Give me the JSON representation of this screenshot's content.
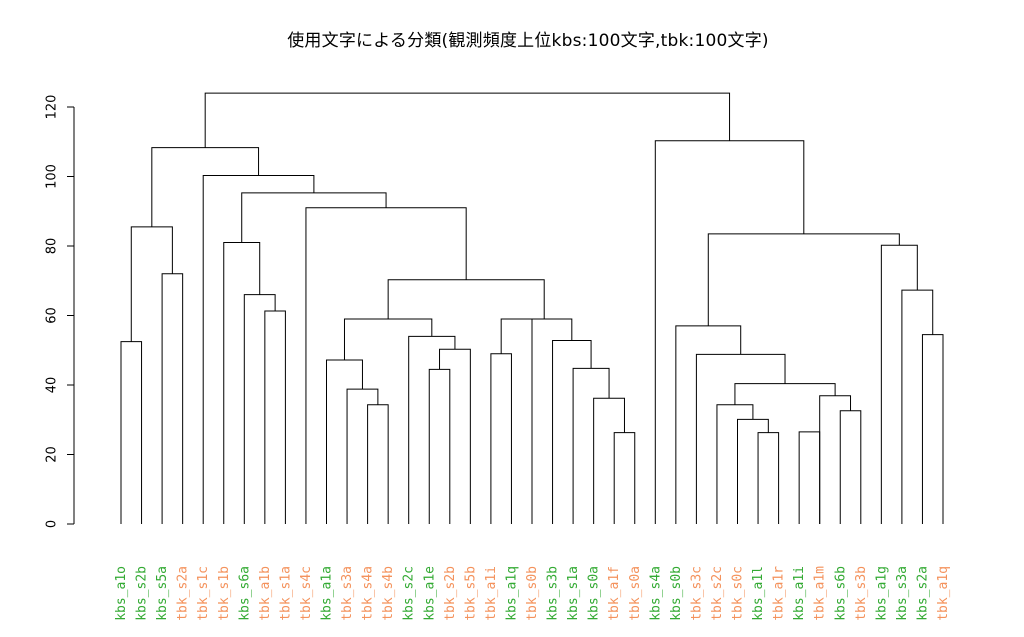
{
  "chart_data": {
    "type": "dendrogram",
    "title": "使用文字による分類(観測頻度上位kbs:100文字,tbk:100文字)",
    "xlabel": "",
    "ylabel": "",
    "ylim": [
      0,
      125
    ],
    "y_ticks": [
      0,
      20,
      40,
      60,
      80,
      100,
      120
    ],
    "y_tick_labels": [
      "0",
      "20",
      "40",
      "60",
      "80",
      "100",
      "120"
    ],
    "colors": {
      "kbs": "#33aa33",
      "tbk": "#f4925c",
      "lines": "#000000"
    },
    "leaves": [
      "kbs_a1o",
      "kbs_s2b",
      "kbs_s5a",
      "tbk_s2a",
      "tbk_s1c",
      "tbk_s1b",
      "kbs_s6a",
      "tbk_a1b",
      "tbk_s1a",
      "tbk_s4c",
      "kbs_a1a",
      "tbk_s3a",
      "tbk_s4a",
      "tbk_s4b",
      "kbs_s2c",
      "kbs_a1e",
      "tbk_s2b",
      "tbk_s5b",
      "tbk_a1i",
      "kbs_a1q",
      "tbk_s0b",
      "kbs_s3b",
      "kbs_s1a",
      "kbs_s0a",
      "tbk_a1f",
      "tbk_s0a",
      "kbs_s4a",
      "kbs_s0b",
      "tbk_s3c",
      "tbk_s2c",
      "tbk_s0c",
      "kbs_a1l",
      "tbk_a1r",
      "kbs_a1i",
      "tbk_a1m",
      "kbs_s6b",
      "tbk_s3b",
      "kbs_a1g",
      "kbs_s3a",
      "kbs_s2a",
      "tbk_a1q"
    ],
    "merges": [
      {
        "left": 0,
        "right": 1,
        "height": 52.5
      },
      {
        "left": 2,
        "right": 3,
        "height": 72
      },
      {
        "left": "m1",
        "right": "m2",
        "height": 85.5
      },
      {
        "left": 7,
        "right": 8,
        "height": 61.3
      },
      {
        "left": 6,
        "right": "m4",
        "height": 66
      },
      {
        "left": 5,
        "right": "m5",
        "height": 81
      },
      {
        "left": 12,
        "right": 13,
        "height": 34.3
      },
      {
        "left": 11,
        "right": "m7",
        "height": 38.8
      },
      {
        "left": 10,
        "right": "m8",
        "height": 47.2
      },
      {
        "left": 15,
        "right": 16,
        "height": 44.5
      },
      {
        "left": "m10",
        "right": 17,
        "height": 50.3
      },
      {
        "left": 14,
        "right": "m11",
        "height": 54
      },
      {
        "left": "m9",
        "right": "m12",
        "height": 59
      },
      {
        "left": 24,
        "right": 25,
        "height": 26.3
      },
      {
        "left": 23,
        "right": "m14",
        "height": 36.2
      },
      {
        "left": 22,
        "right": "m15",
        "height": 44.8
      },
      {
        "left": 21,
        "right": "m16",
        "height": 52.8
      },
      {
        "left": 18,
        "right": 19,
        "height": 49
      },
      {
        "left": "m18",
        "right": 20,
        "height": 59
      },
      {
        "left": "m19",
        "right": "m17",
        "height": 59
      },
      {
        "left": "m13",
        "right": "m20",
        "height": 70.3
      },
      {
        "left": 9,
        "right": "m21",
        "height": 91
      },
      {
        "left": "m6",
        "right": "m22",
        "height": 95.3
      },
      {
        "left": 4,
        "right": "m23",
        "height": 100.3
      },
      {
        "left": "m3",
        "right": "m24",
        "height": 108.3
      },
      {
        "left": 31,
        "right": 32,
        "height": 26.3
      },
      {
        "left": 30,
        "right": "m26",
        "height": 30.1
      },
      {
        "left": 29,
        "right": "m27",
        "height": 34.3
      },
      {
        "left": 35,
        "right": 36,
        "height": 32.6
      },
      {
        "left": 34,
        "right": "m29",
        "height": 36.9
      },
      {
        "left": 33,
        "right": 34,
        "height": 26.5,
        "skip": true
      },
      {
        "left": "m28",
        "right": "m30",
        "height": 40.4
      },
      {
        "left": 28,
        "right": "m32",
        "height": 48.8
      },
      {
        "left": 27,
        "right": "m33",
        "height": 57
      },
      {
        "left": 39,
        "right": 40,
        "height": 54.5
      },
      {
        "left": 38,
        "right": "m35",
        "height": 67.3
      },
      {
        "left": 37,
        "right": "m36",
        "height": 80.2
      },
      {
        "left": "m34",
        "right": "m37",
        "height": 83.5
      },
      {
        "left": 26,
        "right": "m38",
        "height": 110.3
      },
      {
        "left": "m25",
        "right": "m39",
        "height": 124
      }
    ]
  }
}
